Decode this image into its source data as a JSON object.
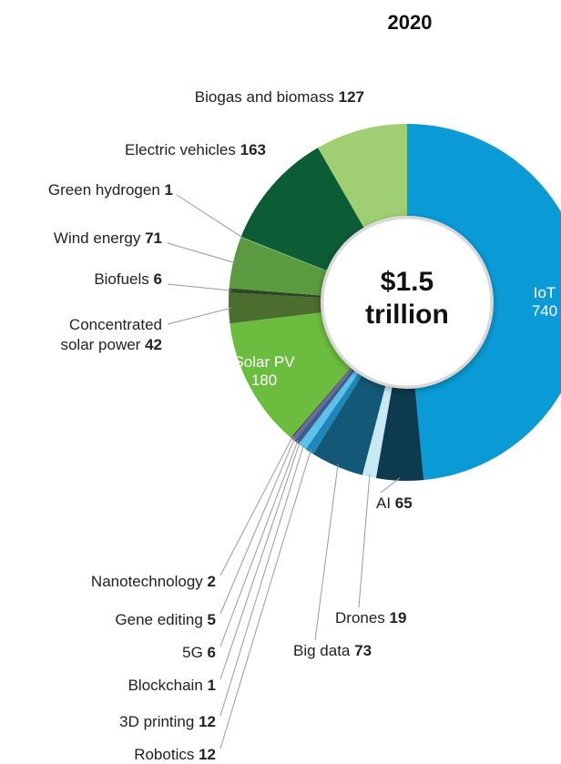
{
  "chart_data": {
    "type": "donut",
    "title": "2020",
    "center_label": "$1.5 trillion",
    "categories": [
      "IoT",
      "AI",
      "Drones",
      "Big data",
      "Robotics",
      "3D printing",
      "Blockchain",
      "5G",
      "Gene editing",
      "Nanotechnology",
      "Solar PV",
      "Concentrated solar power",
      "Biofuels",
      "Wind energy",
      "Green hydrogen",
      "Electric vehicles",
      "Biogas and biomass"
    ],
    "values": [
      740,
      65,
      19,
      73,
      12,
      12,
      1,
      6,
      5,
      2,
      180,
      42,
      6,
      71,
      1,
      163,
      127
    ],
    "colors": [
      "#0a9bd6",
      "#0d3a4e",
      "#c8e8f3",
      "#135876",
      "#1f86b9",
      "#5cc2ea",
      "#2b2d5c",
      "#3b5c8c",
      "#6a6ba2",
      "#4a4a4a",
      "#6cbd3f",
      "#4b6d2e",
      "#2c4822",
      "#5b9a41",
      "#84c365",
      "#0c5c36",
      "#9fcf72"
    ]
  }
}
